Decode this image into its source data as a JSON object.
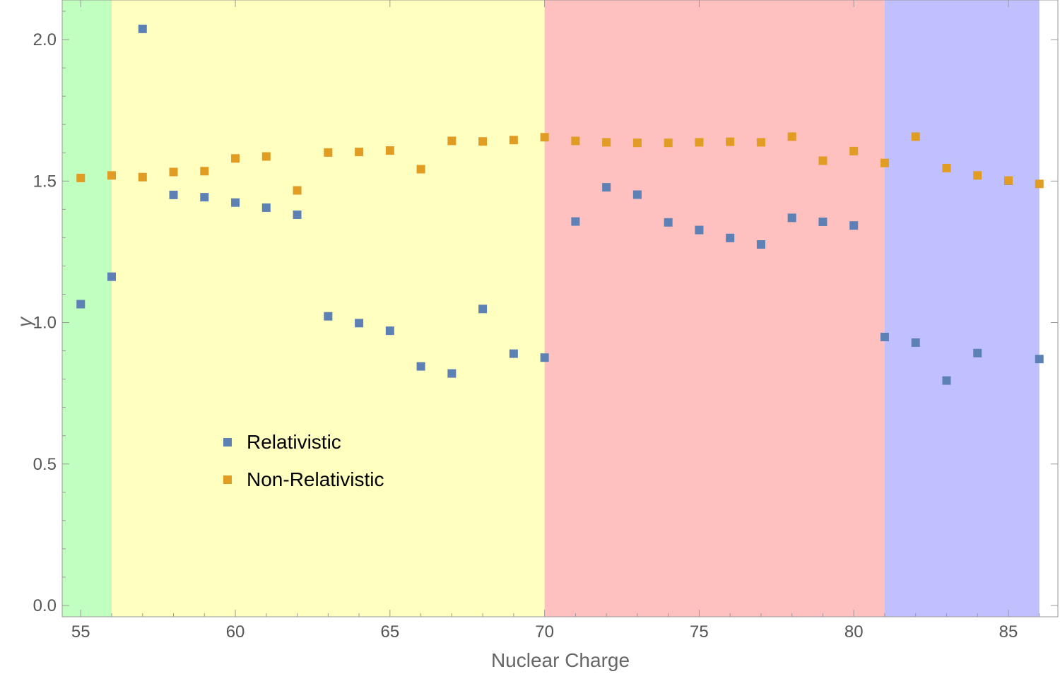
{
  "chart_data": {
    "type": "scatter",
    "title": "",
    "xlabel": "Nuclear Charge",
    "ylabel": "γ",
    "xlim": [
      54.4,
      86.6
    ],
    "ylim": [
      -0.04,
      2.14
    ],
    "x_ticks": [
      55,
      60,
      65,
      70,
      75,
      80,
      85
    ],
    "y_ticks": [
      0.0,
      0.5,
      1.0,
      1.5,
      2.0
    ],
    "y_tick_labels": [
      "0.0",
      "0.5",
      "1.0",
      "1.5",
      "2.0"
    ],
    "background_bands": [
      {
        "from": 54.4,
        "to": 56,
        "color": "#c0ffc0"
      },
      {
        "from": 56,
        "to": 70,
        "color": "#ffffc0"
      },
      {
        "from": 70,
        "to": 81,
        "color": "#ffc0c0"
      },
      {
        "from": 81,
        "to": 86,
        "color": "#c0c0ff"
      }
    ],
    "legend": {
      "position": "lower-left"
    },
    "series": [
      {
        "name": "Relativistic",
        "color": "#5e81b5",
        "x": [
          55,
          56,
          57,
          58,
          59,
          60,
          61,
          62,
          63,
          64,
          65,
          66,
          67,
          68,
          69,
          70,
          71,
          72,
          73,
          74,
          75,
          76,
          77,
          78,
          79,
          80,
          81,
          82,
          83,
          84,
          85,
          86
        ],
        "y": [
          1.065,
          1.162,
          2.038,
          1.451,
          1.443,
          1.424,
          1.406,
          1.381,
          1.022,
          0.998,
          0.971,
          0.845,
          0.82,
          1.048,
          0.89,
          0.876,
          1.357,
          1.478,
          1.452,
          1.354,
          1.327,
          1.299,
          1.276,
          1.37,
          1.356,
          1.343,
          0.949,
          0.929,
          0.795,
          0.892,
          1.501,
          0.871
        ]
      },
      {
        "name": "Non-Relativistic",
        "color": "#e19c24",
        "x": [
          55,
          56,
          57,
          58,
          59,
          60,
          61,
          62,
          63,
          64,
          65,
          66,
          67,
          68,
          69,
          70,
          71,
          72,
          73,
          74,
          75,
          76,
          77,
          78,
          79,
          80,
          81,
          82,
          83,
          84,
          85,
          86
        ],
        "y": [
          1.511,
          1.52,
          1.514,
          1.532,
          1.535,
          1.58,
          1.587,
          1.467,
          1.601,
          1.603,
          1.608,
          1.542,
          1.642,
          1.64,
          1.645,
          1.655,
          1.642,
          1.637,
          1.635,
          1.635,
          1.637,
          1.639,
          1.637,
          1.657,
          1.572,
          1.606,
          1.564,
          1.657,
          1.546,
          1.52,
          1.502,
          1.49
        ]
      }
    ]
  }
}
